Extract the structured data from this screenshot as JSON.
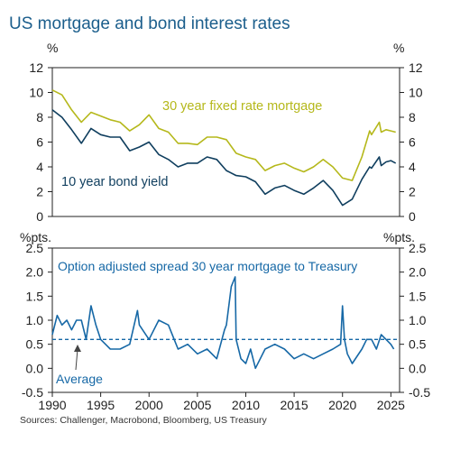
{
  "title": "US mortgage and bond interest rates",
  "source": "Sources: Challenger, Macrobond, Bloomberg, US Treasury",
  "colors": {
    "mortgage": "#b5b81b",
    "bond": "#0f3e5e",
    "spread": "#1668a6",
    "accent": "#1b5e8c",
    "axis": "#222222"
  },
  "chart_data": [
    {
      "type": "line",
      "ylabel": "%",
      "ylabel_right": "%",
      "ylim": [
        0,
        12
      ],
      "yticks": [
        "0",
        "2",
        "4",
        "6",
        "8",
        "10",
        "12"
      ],
      "xlim": [
        1990,
        2025.9
      ],
      "grid": false,
      "series": [
        {
          "name": "30 year fixed rate mortgage",
          "x": [
            1990,
            1991,
            1992,
            1993,
            1994,
            1995,
            1996,
            1997,
            1998,
            1999,
            2000,
            2001,
            2002,
            2003,
            2004,
            2005,
            2006,
            2007,
            2008,
            2009,
            2010,
            2011,
            2012,
            2013,
            2014,
            2015,
            2016,
            2017,
            2018,
            2019,
            2020,
            2021,
            2022,
            2022.8,
            2023,
            2023.8,
            2024,
            2024.5,
            2025,
            2025.5
          ],
          "y": [
            10.2,
            9.8,
            8.6,
            7.6,
            8.4,
            8.1,
            7.8,
            7.6,
            6.9,
            7.4,
            8.2,
            7.1,
            6.8,
            5.9,
            5.9,
            5.8,
            6.4,
            6.4,
            6.2,
            5.1,
            4.8,
            4.6,
            3.7,
            4.1,
            4.3,
            3.9,
            3.6,
            4.0,
            4.6,
            4.0,
            3.1,
            2.9,
            4.8,
            6.9,
            6.6,
            7.6,
            6.8,
            7.0,
            6.9,
            6.8
          ]
        },
        {
          "name": "10 year bond yield",
          "x": [
            1990,
            1991,
            1992,
            1993,
            1994,
            1995,
            1996,
            1997,
            1998,
            1999,
            2000,
            2001,
            2002,
            2003,
            2004,
            2005,
            2006,
            2007,
            2008,
            2009,
            2010,
            2011,
            2012,
            2013,
            2014,
            2015,
            2016,
            2017,
            2018,
            2019,
            2020,
            2021,
            2022,
            2022.8,
            2023,
            2023.8,
            2024,
            2024.5,
            2025,
            2025.5
          ],
          "y": [
            8.6,
            8.0,
            7.0,
            5.9,
            7.1,
            6.6,
            6.4,
            6.4,
            5.3,
            5.6,
            6.0,
            5.0,
            4.6,
            4.0,
            4.3,
            4.3,
            4.8,
            4.6,
            3.7,
            3.3,
            3.2,
            2.8,
            1.8,
            2.3,
            2.5,
            2.1,
            1.8,
            2.3,
            2.9,
            2.1,
            0.9,
            1.4,
            3.0,
            4.0,
            3.9,
            4.8,
            4.1,
            4.4,
            4.5,
            4.3
          ]
        }
      ],
      "annotations": [
        "30 year fixed rate mortgage",
        "10 year bond yield"
      ]
    },
    {
      "type": "line",
      "ylabel": "%pts.",
      "ylabel_right": "%pts.",
      "ylim": [
        -0.5,
        2.5
      ],
      "yticks": [
        "-0.5",
        "0.0",
        "0.5",
        "1.0",
        "1.5",
        "2.0",
        "2.5"
      ],
      "xlim": [
        1990,
        2025.9
      ],
      "xticks": [
        "1990",
        "1995",
        "2000",
        "2005",
        "2010",
        "2015",
        "2020",
        "2025"
      ],
      "grid": false,
      "series": [
        {
          "name": "Option adjusted spread 30 year mortgage to Treasury",
          "x": [
            1990,
            1990.5,
            1991,
            1991.5,
            1992,
            1992.5,
            1993,
            1993.5,
            1994,
            1994.5,
            1995,
            1995.5,
            1996,
            1997,
            1998,
            1998.8,
            1999,
            2000,
            2001,
            2002,
            2003,
            2004,
            2005,
            2006,
            2007,
            2007.8,
            2008,
            2008.5,
            2008.9,
            2009,
            2009.5,
            2010,
            2010.5,
            2011,
            2012,
            2013,
            2014,
            2015,
            2016,
            2017,
            2018,
            2019,
            2019.8,
            2020,
            2020.2,
            2020.5,
            2021,
            2022,
            2022.5,
            2023,
            2023.5,
            2024,
            2024.5,
            2025,
            2025.3
          ],
          "y": [
            0.7,
            1.1,
            0.9,
            1.0,
            0.8,
            1.0,
            1.0,
            0.6,
            1.3,
            0.9,
            0.6,
            0.5,
            0.4,
            0.4,
            0.5,
            1.2,
            0.9,
            0.6,
            1.0,
            0.9,
            0.4,
            0.5,
            0.3,
            0.4,
            0.2,
            0.8,
            0.9,
            1.7,
            1.9,
            0.6,
            0.2,
            0.1,
            0.4,
            0.0,
            0.4,
            0.5,
            0.4,
            0.2,
            0.3,
            0.2,
            0.3,
            0.4,
            0.5,
            1.3,
            0.6,
            0.3,
            0.1,
            0.4,
            0.6,
            0.6,
            0.4,
            0.7,
            0.6,
            0.5,
            0.4
          ]
        },
        {
          "name": "Average",
          "x": [
            1990,
            2025.9
          ],
          "y": [
            0.6,
            0.6
          ]
        }
      ],
      "annotations": [
        "Option adjusted spread 30 year mortgage to Treasury",
        "Average"
      ]
    }
  ]
}
